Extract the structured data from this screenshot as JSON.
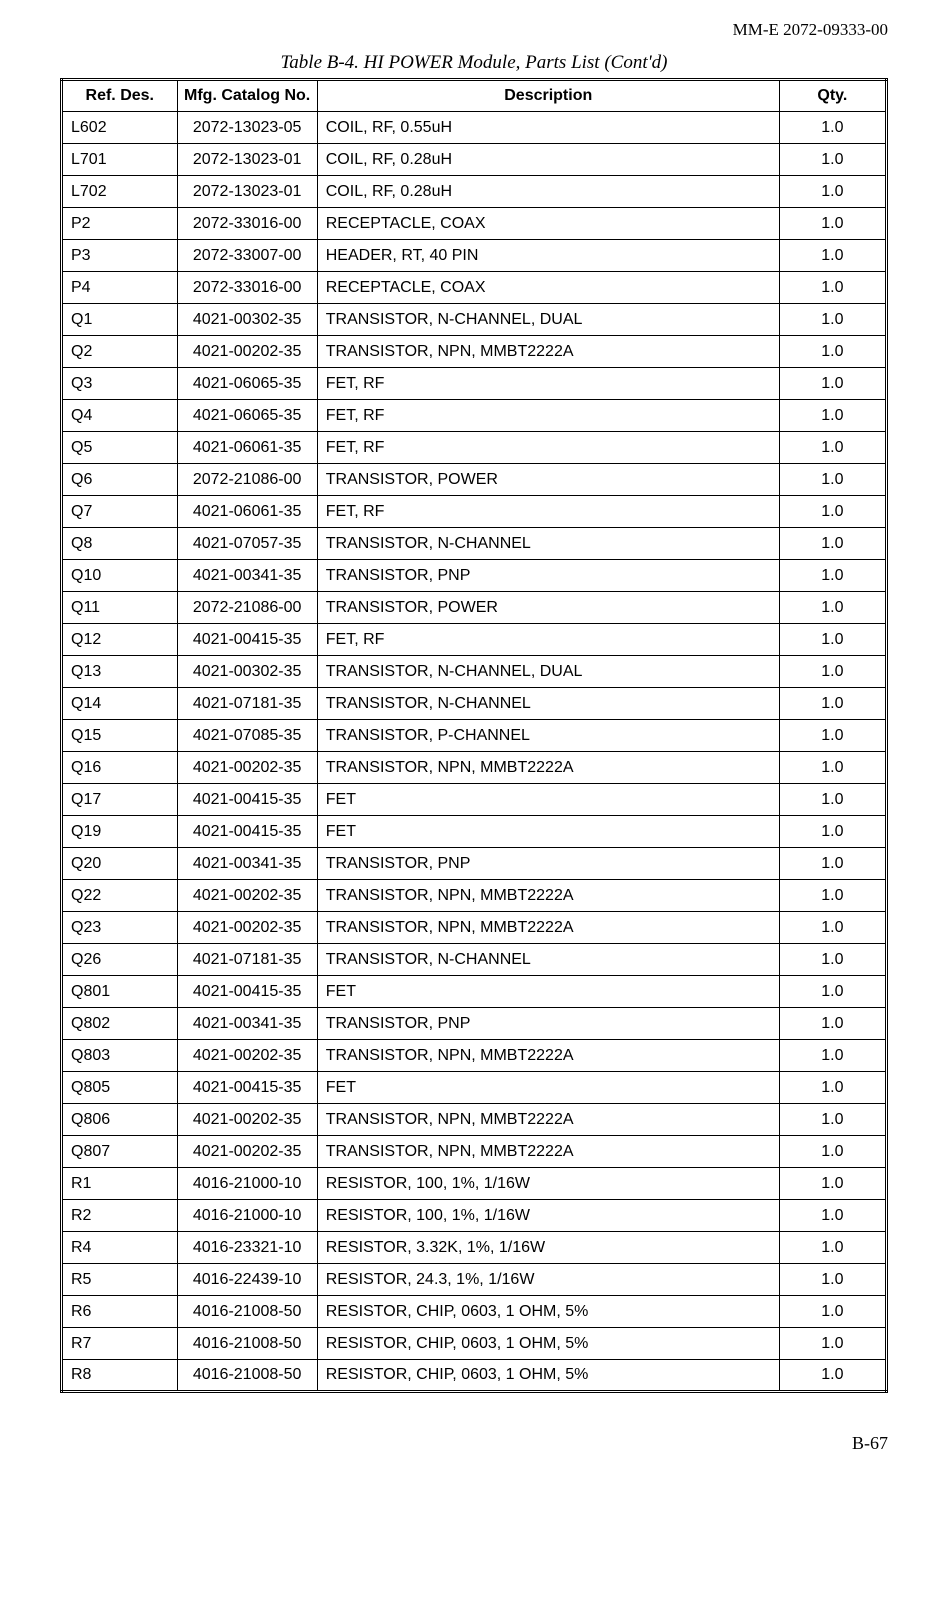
{
  "document": {
    "header_id": "MM-E 2072-09333-00",
    "table_title": "Table B-4. HI POWER Module, Parts List (Cont'd)",
    "page_number": "B-67"
  },
  "table": {
    "columns": [
      "Ref. Des.",
      "Mfg. Catalog No.",
      "Description",
      "Qty."
    ],
    "rows": [
      [
        "L602",
        "2072-13023-05",
        "COIL, RF, 0.55uH",
        "1.0"
      ],
      [
        "L701",
        "2072-13023-01",
        "COIL, RF, 0.28uH",
        "1.0"
      ],
      [
        "L702",
        "2072-13023-01",
        "COIL, RF, 0.28uH",
        "1.0"
      ],
      [
        "P2",
        "2072-33016-00",
        "RECEPTACLE, COAX",
        "1.0"
      ],
      [
        "P3",
        "2072-33007-00",
        "HEADER, RT, 40 PIN",
        "1.0"
      ],
      [
        "P4",
        "2072-33016-00",
        "RECEPTACLE, COAX",
        "1.0"
      ],
      [
        "Q1",
        "4021-00302-35",
        "TRANSISTOR, N-CHANNEL, DUAL",
        "1.0"
      ],
      [
        "Q2",
        "4021-00202-35",
        "TRANSISTOR, NPN, MMBT2222A",
        "1.0"
      ],
      [
        "Q3",
        "4021-06065-35",
        "FET, RF",
        "1.0"
      ],
      [
        "Q4",
        "4021-06065-35",
        "FET, RF",
        "1.0"
      ],
      [
        "Q5",
        "4021-06061-35",
        "FET, RF",
        "1.0"
      ],
      [
        "Q6",
        "2072-21086-00",
        "TRANSISTOR, POWER",
        "1.0"
      ],
      [
        "Q7",
        "4021-06061-35",
        "FET, RF",
        "1.0"
      ],
      [
        "Q8",
        "4021-07057-35",
        "TRANSISTOR, N-CHANNEL",
        "1.0"
      ],
      [
        "Q10",
        "4021-00341-35",
        "TRANSISTOR, PNP",
        "1.0"
      ],
      [
        "Q11",
        "2072-21086-00",
        "TRANSISTOR, POWER",
        "1.0"
      ],
      [
        "Q12",
        "4021-00415-35",
        "FET, RF",
        "1.0"
      ],
      [
        "Q13",
        "4021-00302-35",
        "TRANSISTOR, N-CHANNEL, DUAL",
        "1.0"
      ],
      [
        "Q14",
        "4021-07181-35",
        "TRANSISTOR, N-CHANNEL",
        "1.0"
      ],
      [
        "Q15",
        "4021-07085-35",
        "TRANSISTOR, P-CHANNEL",
        "1.0"
      ],
      [
        "Q16",
        "4021-00202-35",
        "TRANSISTOR, NPN, MMBT2222A",
        "1.0"
      ],
      [
        "Q17",
        "4021-00415-35",
        "FET",
        "1.0"
      ],
      [
        "Q19",
        "4021-00415-35",
        "FET",
        "1.0"
      ],
      [
        "Q20",
        "4021-00341-35",
        "TRANSISTOR, PNP",
        "1.0"
      ],
      [
        "Q22",
        "4021-00202-35",
        "TRANSISTOR, NPN, MMBT2222A",
        "1.0"
      ],
      [
        "Q23",
        "4021-00202-35",
        "TRANSISTOR, NPN, MMBT2222A",
        "1.0"
      ],
      [
        "Q26",
        "4021-07181-35",
        "TRANSISTOR, N-CHANNEL",
        "1.0"
      ],
      [
        "Q801",
        "4021-00415-35",
        "FET",
        "1.0"
      ],
      [
        "Q802",
        "4021-00341-35",
        "TRANSISTOR, PNP",
        "1.0"
      ],
      [
        "Q803",
        "4021-00202-35",
        "TRANSISTOR, NPN, MMBT2222A",
        "1.0"
      ],
      [
        "Q805",
        "4021-00415-35",
        "FET",
        "1.0"
      ],
      [
        "Q806",
        "4021-00202-35",
        "TRANSISTOR, NPN, MMBT2222A",
        "1.0"
      ],
      [
        "Q807",
        "4021-00202-35",
        "TRANSISTOR, NPN, MMBT2222A",
        "1.0"
      ],
      [
        "R1",
        "4016-21000-10",
        "RESISTOR, 100, 1%, 1/16W",
        "1.0"
      ],
      [
        "R2",
        "4016-21000-10",
        "RESISTOR, 100, 1%, 1/16W",
        "1.0"
      ],
      [
        "R4",
        "4016-23321-10",
        "RESISTOR, 3.32K, 1%, 1/16W",
        "1.0"
      ],
      [
        "R5",
        "4016-22439-10",
        "RESISTOR, 24.3, 1%, 1/16W",
        "1.0"
      ],
      [
        "R6",
        "4016-21008-50",
        "RESISTOR, CHIP, 0603, 1 OHM, 5%",
        "1.0"
      ],
      [
        "R7",
        "4016-21008-50",
        "RESISTOR, CHIP, 0603, 1 OHM, 5%",
        "1.0"
      ],
      [
        "R8",
        "4016-21008-50",
        "RESISTOR, CHIP, 0603, 1 OHM, 5%",
        "1.0"
      ]
    ]
  }
}
